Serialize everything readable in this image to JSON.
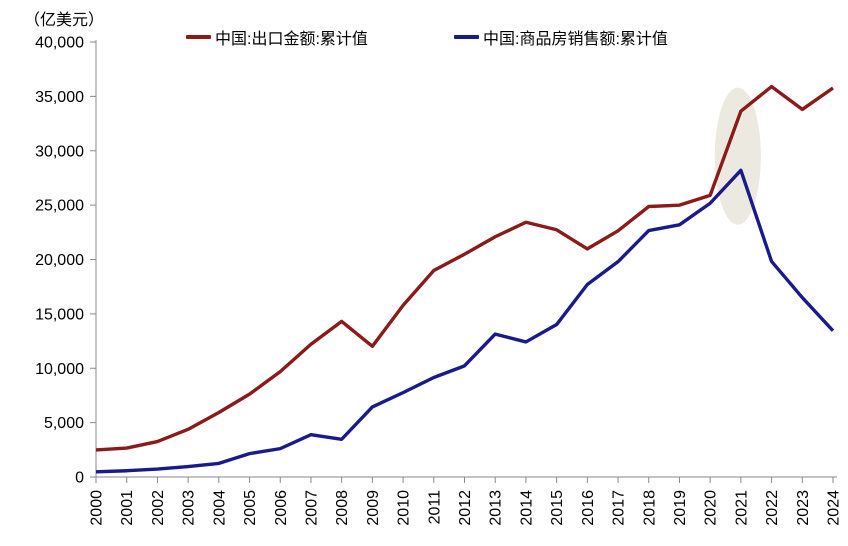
{
  "chart": {
    "unit_label": "（亿美元）"
  },
  "chart_data": {
    "type": "line",
    "title": "",
    "unit_label": "（亿美元）",
    "xlabel": "",
    "ylabel": "亿美元",
    "x": [
      2000,
      2001,
      2002,
      2003,
      2004,
      2005,
      2006,
      2007,
      2008,
      2009,
      2010,
      2011,
      2012,
      2013,
      2014,
      2015,
      2016,
      2017,
      2018,
      2019,
      2020,
      2021,
      2022,
      2023,
      2024
    ],
    "series": [
      {
        "name": "中国:出口金额:累计值",
        "color": "#8B1A1A",
        "values": [
          2492,
          2661,
          3256,
          4382,
          5933,
          7620,
          9690,
          12205,
          14307,
          12016,
          15778,
          18984,
          20487,
          22090,
          23423,
          22735,
          20976,
          22635,
          24874,
          24995,
          25900,
          33640,
          35900,
          33800,
          35770
        ]
      },
      {
        "name": "中国:商品房销售额:累计值",
        "color": "#1A1A8C",
        "values": [
          475,
          575,
          730,
          960,
          1250,
          2150,
          2610,
          3890,
          3470,
          6440,
          7760,
          9150,
          10220,
          13140,
          12420,
          14020,
          17700,
          19800,
          22660,
          23190,
          25170,
          28200,
          19820,
          16500,
          13450
        ]
      }
    ],
    "ylim": [
      0,
      40000
    ],
    "ytick_step": 5000,
    "grid": false,
    "legend_position": "top",
    "axis_color": "#8a8a8a",
    "text_color": "#000000",
    "annotations": [
      {
        "type": "ellipse_highlight",
        "x_center": 2020.9,
        "x_radius": 0.75,
        "y_center": 29500,
        "y_radius": 6300,
        "color": "#E9E5DB",
        "opacity": 0.85
      }
    ]
  }
}
